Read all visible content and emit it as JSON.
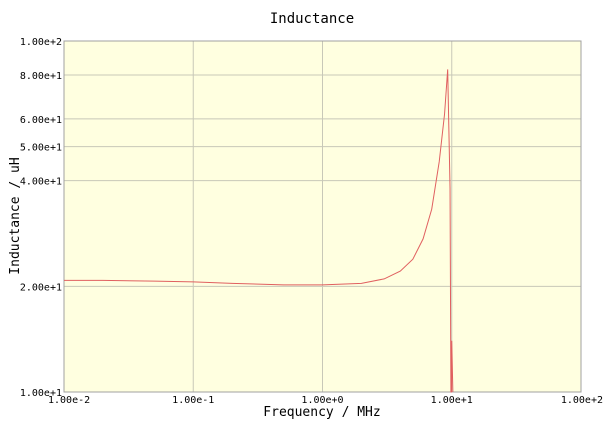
{
  "chart_data": {
    "type": "line",
    "title": "Inductance",
    "xlabel": "Frequency / MHz",
    "ylabel": "Inductance / uH",
    "x_scale": "log",
    "y_scale": "log",
    "xlim": [
      0.01,
      100
    ],
    "ylim": [
      10,
      100
    ],
    "grid": true,
    "x_ticks": [
      {
        "value": 0.01,
        "label": "1.00e-2"
      },
      {
        "value": 0.1,
        "label": "1.00e-1"
      },
      {
        "value": 1,
        "label": "1.00e+0"
      },
      {
        "value": 10,
        "label": "1.00e+1"
      },
      {
        "value": 100,
        "label": "1.00e+2"
      }
    ],
    "y_ticks": [
      {
        "value": 10,
        "label": "1.00e+1"
      },
      {
        "value": 20,
        "label": "2.00e+1"
      },
      {
        "value": 40,
        "label": "4.00e+1"
      },
      {
        "value": 50,
        "label": "5.00e+1"
      },
      {
        "value": 60,
        "label": "6.00e+1"
      },
      {
        "value": 80,
        "label": "8.00e+1"
      },
      {
        "value": 100,
        "label": "1.00e+2"
      }
    ],
    "series": [
      {
        "color": "#e06060",
        "points": [
          [
            0.01,
            20.8
          ],
          [
            0.02,
            20.8
          ],
          [
            0.05,
            20.7
          ],
          [
            0.1,
            20.6
          ],
          [
            0.2,
            20.4
          ],
          [
            0.5,
            20.2
          ],
          [
            1.0,
            20.2
          ],
          [
            2.0,
            20.4
          ],
          [
            3.0,
            21.0
          ],
          [
            4.0,
            22.1
          ],
          [
            5.0,
            23.9
          ],
          [
            6.0,
            27.3
          ],
          [
            7.0,
            33.2
          ],
          [
            8.0,
            45.3
          ],
          [
            8.8,
            62.0
          ],
          [
            9.3,
            83.0
          ],
          [
            9.7,
            38.0
          ],
          [
            9.85,
            10.0
          ],
          [
            9.95,
            10.0
          ],
          [
            10.0,
            14.0
          ],
          [
            10.2,
            10.0
          ]
        ]
      }
    ],
    "colors": {
      "plot_background": "#ffffe0",
      "grid": "#c8c8b8",
      "frame": "#a0a0a0"
    }
  }
}
